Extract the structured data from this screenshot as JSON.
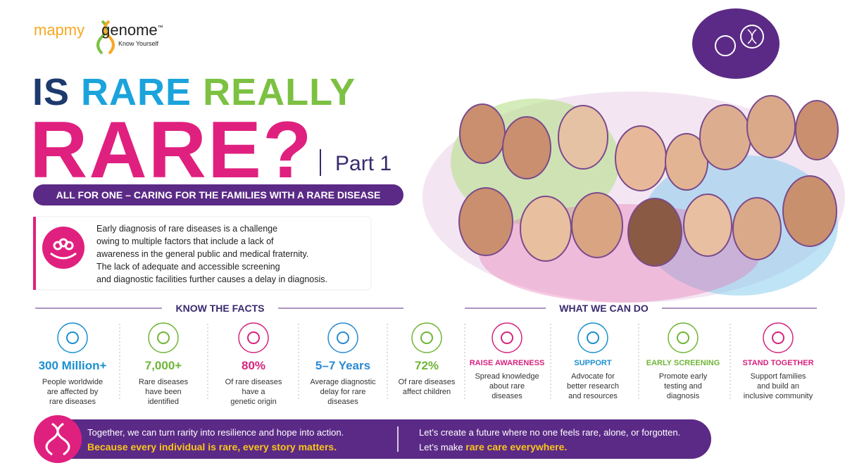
{
  "logo": {
    "brand_left": "mapmy",
    "brand_right": "genome",
    "trademark": "™",
    "tagline": "Know Yourself"
  },
  "title": {
    "line1": [
      "IS",
      "RARE",
      "REALLY"
    ],
    "line2": "RARE?",
    "part": "Part 1"
  },
  "banner": "ALL FOR ONE – CARING FOR THE FAMILIES WITH A RARE DISEASE",
  "intro": [
    "Early diagnosis of rare diseases is a challenge",
    "owing to multiple factors that include a lack of",
    "awareness in the general public and medical fraternity.",
    "The lack of adequate and accessible screening",
    "and diagnostic facilities further causes a delay in diagnosis."
  ],
  "facts": {
    "heading": "KNOW THE FACTS",
    "items": [
      {
        "headline": "300 Million+",
        "text": [
          "People worldwide",
          "are affected by",
          "rare diseases"
        ]
      },
      {
        "headline": "7,000+",
        "text": [
          "Rare diseases",
          "have been",
          "identified"
        ]
      },
      {
        "headline": "80%",
        "text": [
          "Of rare diseases",
          "have a",
          "genetic origin"
        ]
      },
      {
        "headline": "5–7 Years",
        "text": [
          "Average diagnostic",
          "delay for rare",
          "diseases"
        ]
      },
      {
        "headline": "72%",
        "text": [
          "Of rare diseases",
          "affect children"
        ]
      }
    ]
  },
  "actions": {
    "heading": "WHAT WE CAN DO",
    "items": [
      {
        "headline": "RAISE AWARENESS",
        "text": [
          "Spread knowledge",
          "about rare",
          "diseases"
        ]
      },
      {
        "headline": "SUPPORT",
        "text": [
          "Advocate for",
          "better research",
          "and resources"
        ]
      },
      {
        "headline": "EARLY SCREENING",
        "text": [
          "Promote early",
          "testing and",
          "diagnosis"
        ]
      },
      {
        "headline": "STAND TOGETHER",
        "text": [
          "Support families",
          "and build an",
          "inclusive community"
        ]
      }
    ]
  },
  "footer": {
    "left": [
      "Together, we can turn rarity into resilience and hope into action.",
      "Because every individual is rare, every story matters."
    ],
    "right": {
      "line1": "Let’s create a future where no one feels rare, alone, or forgotten.",
      "line2_prefix": "Let’s make",
      "line2_highlight": "rare care everywhere."
    }
  }
}
